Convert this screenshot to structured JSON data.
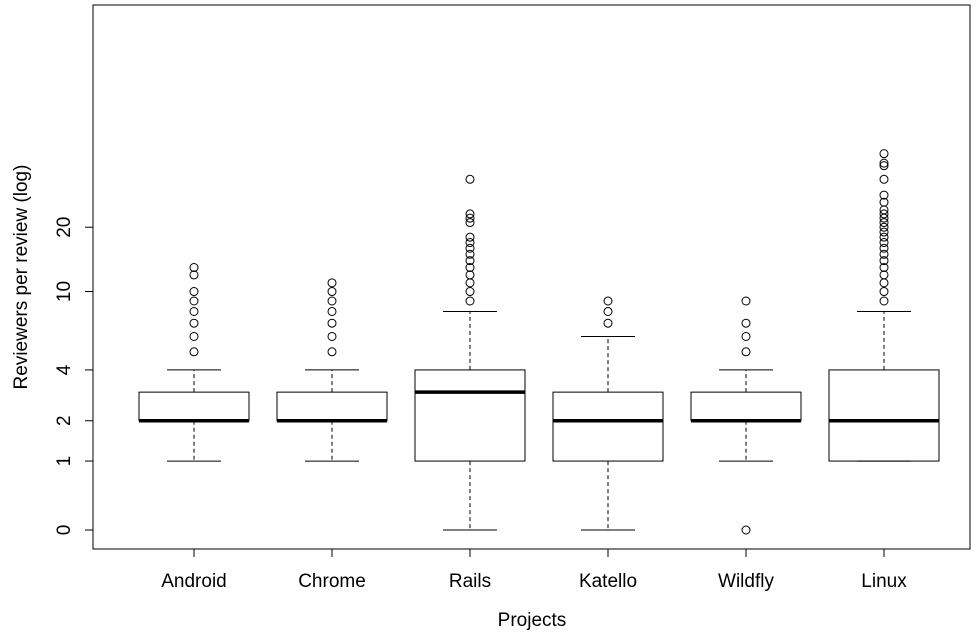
{
  "chart_data": {
    "type": "boxplot",
    "xlabel": "Projects",
    "ylabel": "Reviewers per review (log)",
    "yscale": "log1p",
    "y_ticks": [
      0,
      1,
      2,
      4,
      10,
      20
    ],
    "y_tick_labels": [
      "0",
      "1",
      "2",
      "4",
      "10",
      "20"
    ],
    "ylim": [
      0,
      44
    ],
    "grid": false,
    "categories": [
      "Android",
      "Chrome",
      "Rails",
      "Katello",
      "Wildfly",
      "Linux"
    ],
    "boxes": [
      {
        "name": "Android",
        "whisker_low": 1,
        "q1": 2,
        "median": 2,
        "q3": 3,
        "whisker_high": 4,
        "outliers": [
          5,
          6,
          7,
          8,
          9,
          10,
          12,
          13
        ]
      },
      {
        "name": "Chrome",
        "whisker_low": 1,
        "q1": 2,
        "median": 2,
        "q3": 3,
        "whisker_high": 4,
        "outliers": [
          5,
          6,
          7,
          8,
          9,
          10,
          11
        ]
      },
      {
        "name": "Rails",
        "whisker_low": 0,
        "q1": 1,
        "median": 3,
        "q3": 4,
        "whisker_high": 8,
        "outliers": [
          9,
          10,
          11,
          12,
          13,
          14,
          15,
          16,
          17,
          18,
          21,
          22,
          23,
          33
        ]
      },
      {
        "name": "Katello",
        "whisker_low": 0,
        "q1": 1,
        "median": 2,
        "q3": 3,
        "whisker_high": 6,
        "outliers": [
          7,
          8,
          9
        ]
      },
      {
        "name": "Wildfly",
        "whisker_low": 1,
        "q1": 2,
        "median": 2,
        "q3": 3,
        "whisker_high": 4,
        "outliers": [
          0,
          5,
          6,
          7,
          9
        ]
      },
      {
        "name": "Linux",
        "whisker_low": 1,
        "q1": 1,
        "median": 2,
        "q3": 4,
        "whisker_high": 8,
        "outliers": [
          9,
          10,
          11,
          12,
          13,
          14,
          15,
          16,
          17,
          18,
          19,
          20,
          21,
          22,
          23,
          24,
          26,
          28,
          33,
          38,
          39,
          43
        ]
      }
    ]
  }
}
